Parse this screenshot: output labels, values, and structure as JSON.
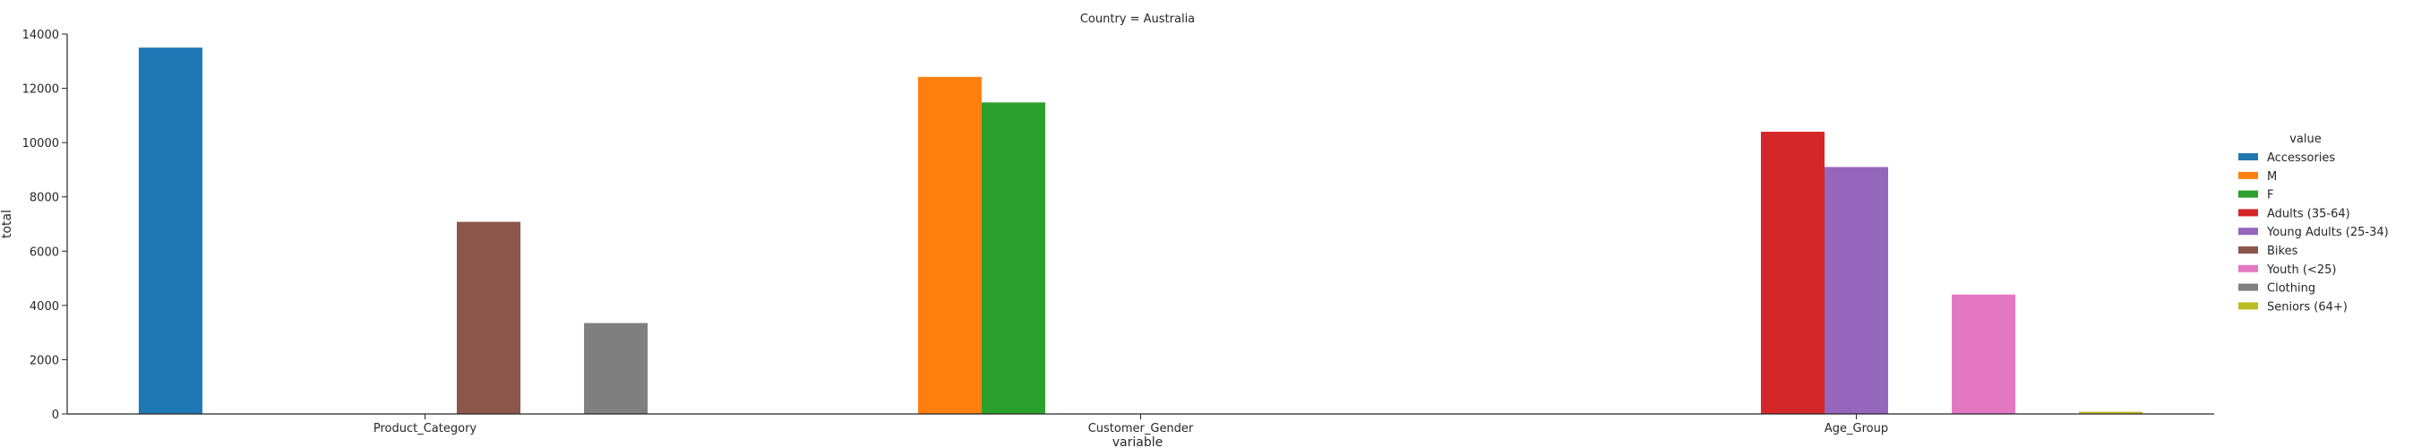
{
  "chart_data": {
    "type": "bar",
    "title": "Country = Australia",
    "xlabel": "variable",
    "ylabel": "total",
    "ylim": [
      0,
      14000
    ],
    "yticks": [
      0,
      2000,
      4000,
      6000,
      8000,
      10000,
      12000,
      14000
    ],
    "categories": [
      "Product_Category",
      "Customer_Gender",
      "Age_Group"
    ],
    "grid": false,
    "legend": {
      "title": "value",
      "placement": "right"
    },
    "series": [
      {
        "name": "Accessories",
        "color": "#1f77b4",
        "values": [
          13500,
          0,
          0
        ]
      },
      {
        "name": "M",
        "color": "#ff7f0e",
        "values": [
          0,
          12420,
          0
        ]
      },
      {
        "name": "F",
        "color": "#2ca02c",
        "values": [
          0,
          11480,
          0
        ]
      },
      {
        "name": "Adults (35-64)",
        "color": "#d62728",
        "values": [
          0,
          0,
          10400
        ]
      },
      {
        "name": "Young Adults (25-34)",
        "color": "#9467bd",
        "values": [
          0,
          0,
          9100
        ]
      },
      {
        "name": "Bikes",
        "color": "#8c564b",
        "values": [
          7080,
          0,
          0
        ]
      },
      {
        "name": "Youth (<25)",
        "color": "#e377c2",
        "values": [
          0,
          0,
          4400
        ]
      },
      {
        "name": "Clothing",
        "color": "#7f7f7f",
        "values": [
          3350,
          0,
          0
        ]
      },
      {
        "name": "Seniors (64+)",
        "color": "#bcbd22",
        "values": [
          0,
          0,
          80
        ]
      }
    ]
  }
}
